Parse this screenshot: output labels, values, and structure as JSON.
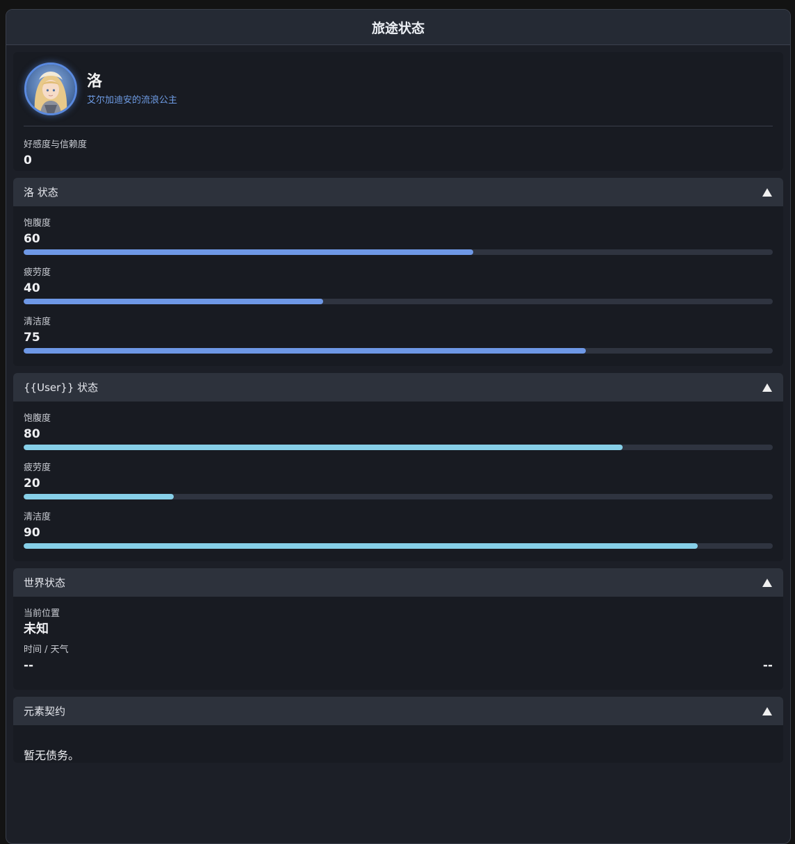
{
  "window": {
    "title": "旅途状态"
  },
  "profile": {
    "name": "洛",
    "subtitle": "艾尔加迪安的流浪公主",
    "affection": {
      "label": "好感度与信赖度",
      "value": "0",
      "fill": 0.5,
      "color": "#ffb0c0"
    }
  },
  "lo_status": {
    "title": "洛 状态",
    "stats": [
      {
        "label": "饱腹度",
        "value": "60",
        "fill": 0.6,
        "color": "#6e98e6"
      },
      {
        "label": "疲劳度",
        "value": "40",
        "fill": 0.4,
        "color": "#6e98e6"
      },
      {
        "label": "清洁度",
        "value": "75",
        "fill": 0.75,
        "color": "#6e98e6"
      }
    ]
  },
  "user_status": {
    "title": "{{User}} 状态",
    "stats": [
      {
        "label": "饱腹度",
        "value": "80",
        "fill": 0.8,
        "color": "#86cfe8"
      },
      {
        "label": "疲劳度",
        "value": "20",
        "fill": 0.2,
        "color": "#86cfe8"
      },
      {
        "label": "清洁度",
        "value": "90",
        "fill": 0.9,
        "color": "#86cfe8"
      }
    ]
  },
  "world": {
    "title": "世界状态",
    "location_label": "当前位置",
    "location_value": "未知",
    "time_label": "时间 / 天气",
    "time_value": "--",
    "weather_value": "--"
  },
  "pact": {
    "title": "元素契约",
    "text": "暂无债务。"
  },
  "icons": {
    "collapse": "triangle-up-icon"
  }
}
